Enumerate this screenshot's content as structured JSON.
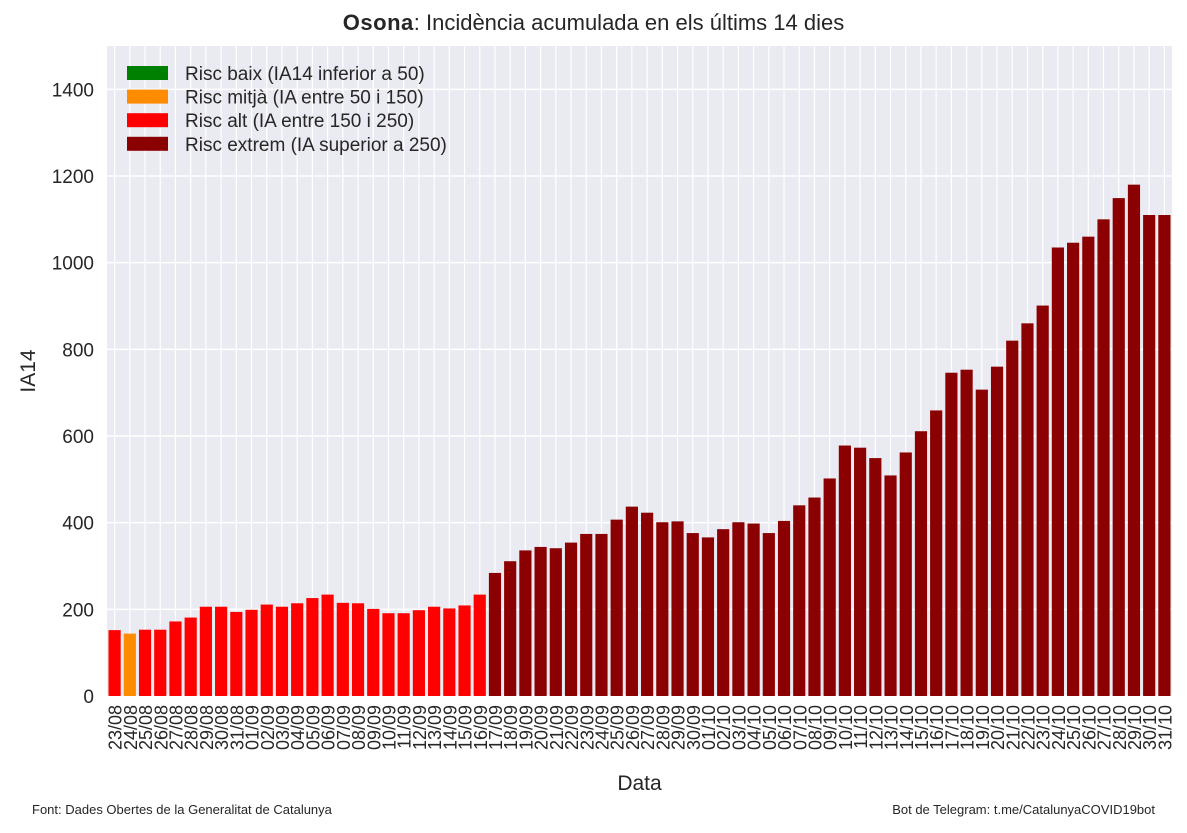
{
  "title": {
    "region": "Osona",
    "rest": ": Incidència acumulada en els últims 14 dies"
  },
  "footer": {
    "left": "Font: Dades Obertes de la Generalitat de Catalunya",
    "right": "Bot de Telegram: t.me/CatalunyaCOVID19bot"
  },
  "colors": {
    "background": "#eaeaf2",
    "grid": "#ffffff",
    "risc_baix": "#008000",
    "risc_mitja": "#ff8c00",
    "risc_alt": "#ff0000",
    "risc_extrem": "#8b0000"
  },
  "chart_data": {
    "type": "bar",
    "xlabel": "Data",
    "ylabel": "IA14",
    "ylim": [
      0,
      1500
    ],
    "yticks": [
      0,
      200,
      400,
      600,
      800,
      1000,
      1200,
      1400
    ],
    "grid": true,
    "legend_position": "top-left",
    "legend": [
      {
        "label": "Risc baix (IA14 inferior a 50)",
        "color": "#008000"
      },
      {
        "label": "Risc mitjà (IA entre 50 i 150)",
        "color": "#ff8c00"
      },
      {
        "label": "Risc alt (IA entre 150 i 250)",
        "color": "#ff0000"
      },
      {
        "label": "Risc extrem (IA superior a 250)",
        "color": "#8b0000"
      }
    ],
    "categories": [
      "23/08",
      "24/08",
      "25/08",
      "26/08",
      "27/08",
      "28/08",
      "29/08",
      "30/08",
      "31/08",
      "01/09",
      "02/09",
      "03/09",
      "04/09",
      "05/09",
      "06/09",
      "07/09",
      "08/09",
      "09/09",
      "10/09",
      "11/09",
      "12/09",
      "13/09",
      "14/09",
      "15/09",
      "16/09",
      "17/09",
      "18/09",
      "19/09",
      "20/09",
      "21/09",
      "22/09",
      "23/09",
      "24/09",
      "25/09",
      "26/09",
      "27/09",
      "28/09",
      "29/09",
      "30/09",
      "01/10",
      "02/10",
      "03/10",
      "04/10",
      "05/10",
      "06/10",
      "07/10",
      "08/10",
      "09/10",
      "10/10",
      "11/10",
      "12/10",
      "13/10",
      "14/10",
      "15/10",
      "16/10",
      "17/10",
      "18/10",
      "19/10",
      "20/10",
      "21/10",
      "22/10",
      "23/10",
      "24/10",
      "25/10",
      "26/10",
      "27/10",
      "28/10",
      "29/10",
      "30/10",
      "31/10"
    ],
    "values": [
      152,
      144,
      153,
      153,
      172,
      181,
      206,
      206,
      194,
      199,
      211,
      206,
      214,
      226,
      234,
      215,
      214,
      201,
      191,
      191,
      198,
      206,
      202,
      209,
      234,
      284,
      311,
      336,
      344,
      341,
      354,
      374,
      374,
      407,
      437,
      423,
      401,
      403,
      376,
      366,
      385,
      401,
      398,
      376,
      404,
      440,
      458,
      502,
      578,
      573,
      549,
      509,
      562,
      611,
      659,
      746,
      753,
      707,
      760,
      820,
      860,
      901,
      1035,
      1046,
      1060,
      1100,
      1149,
      1180,
      1110,
      1110
    ],
    "risk": [
      "alt",
      "mitja",
      "alt",
      "alt",
      "alt",
      "alt",
      "alt",
      "alt",
      "alt",
      "alt",
      "alt",
      "alt",
      "alt",
      "alt",
      "alt",
      "alt",
      "alt",
      "alt",
      "alt",
      "alt",
      "alt",
      "alt",
      "alt",
      "alt",
      "alt",
      "extrem",
      "extrem",
      "extrem",
      "extrem",
      "extrem",
      "extrem",
      "extrem",
      "extrem",
      "extrem",
      "extrem",
      "extrem",
      "extrem",
      "extrem",
      "extrem",
      "extrem",
      "extrem",
      "extrem",
      "extrem",
      "extrem",
      "extrem",
      "extrem",
      "extrem",
      "extrem",
      "extrem",
      "extrem",
      "extrem",
      "extrem",
      "extrem",
      "extrem",
      "extrem",
      "extrem",
      "extrem",
      "extrem",
      "extrem",
      "extrem",
      "extrem",
      "extrem",
      "extrem",
      "extrem",
      "extrem",
      "extrem",
      "extrem",
      "extrem",
      "extrem",
      "extrem"
    ]
  }
}
